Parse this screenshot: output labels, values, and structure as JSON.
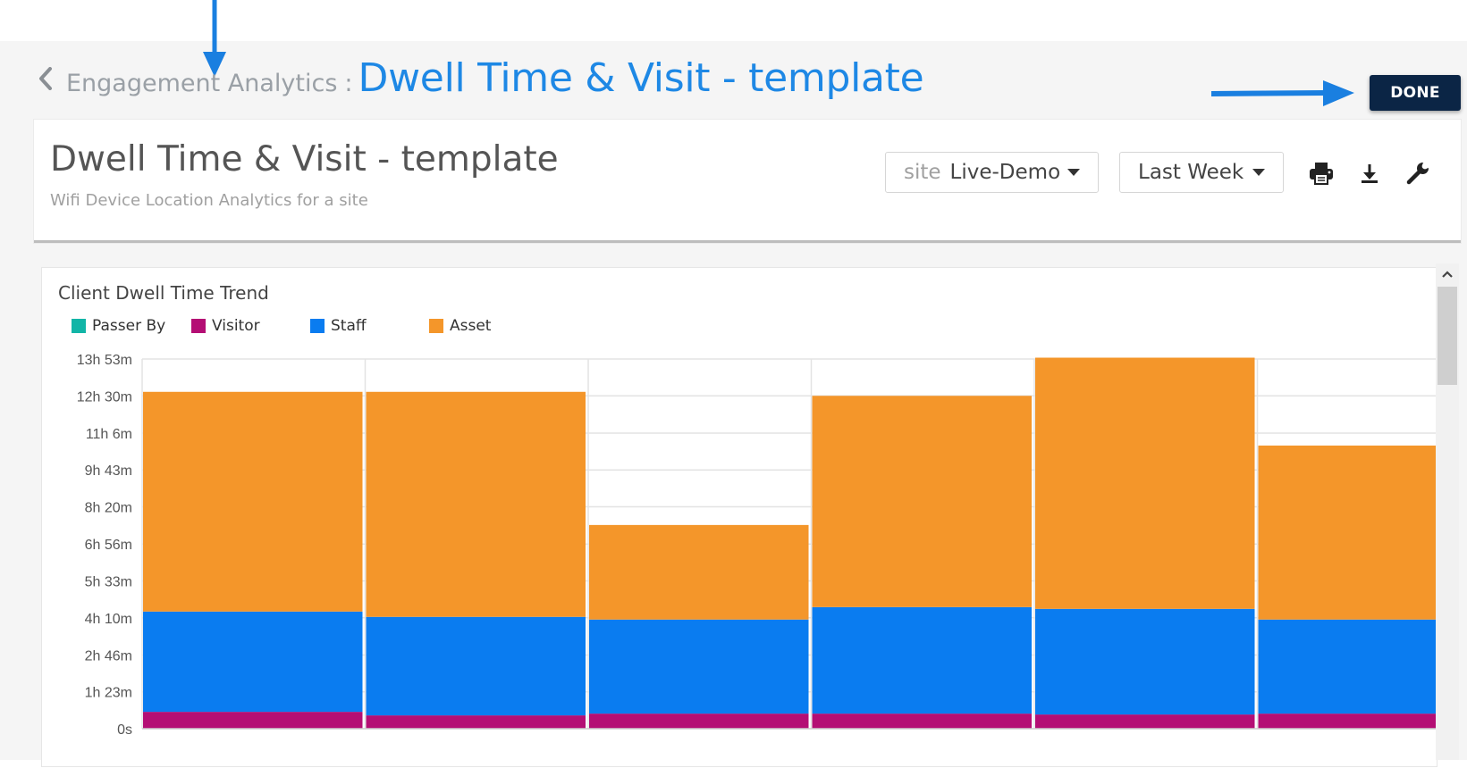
{
  "breadcrumb": {
    "parent": "Engagement Analytics",
    "separator": ":",
    "current": "Dwell Time & Visit - template"
  },
  "done_button": {
    "label": "DONE"
  },
  "dashboard": {
    "title": "Dwell Time & Visit - template",
    "subtitle": "Wifi Device Location Analytics for a site"
  },
  "filters": {
    "site": {
      "prefix": "site",
      "value": "Live-Demo"
    },
    "time_range": {
      "value": "Last Week"
    }
  },
  "toolbar_icons": [
    "print-icon",
    "download-icon",
    "wrench-icon"
  ],
  "colors": {
    "accent": "#1e88e5",
    "done_button": "#0b2545",
    "annotation_arrow": "#1a7fe0",
    "passer_by": "#12b5a7",
    "visitor": "#b40e74",
    "staff": "#0a7cf0",
    "asset": "#f4962a"
  },
  "widget": {
    "title": "Client Dwell Time Trend"
  },
  "chart_data": {
    "type": "bar",
    "stacked": true,
    "title": "Client Dwell Time Trend",
    "unit": "minutes",
    "y_axis_max_minutes": 833,
    "y_ticks": [
      {
        "label": "13h 53m",
        "minutes": 833
      },
      {
        "label": "12h 30m",
        "minutes": 750
      },
      {
        "label": "11h 6m",
        "minutes": 666
      },
      {
        "label": "9h 43m",
        "minutes": 583
      },
      {
        "label": "8h 20m",
        "minutes": 500
      },
      {
        "label": "6h 56m",
        "minutes": 416
      },
      {
        "label": "5h 33m",
        "minutes": 333
      },
      {
        "label": "4h 10m",
        "minutes": 250
      },
      {
        "label": "2h 46m",
        "minutes": 166
      },
      {
        "label": "1h 23m",
        "minutes": 83
      },
      {
        "label": "0s",
        "minutes": 0
      }
    ],
    "grid": true,
    "legend_position": "top-left",
    "bar_count": 6,
    "last_bar_cropped": true,
    "series": [
      {
        "name": "Passer By",
        "color": "#12b5a7",
        "values": [
          0,
          0,
          0,
          0,
          0,
          0
        ]
      },
      {
        "name": "Visitor",
        "color": "#b40e74",
        "values": [
          38,
          30,
          34,
          34,
          32,
          34
        ]
      },
      {
        "name": "Staff",
        "color": "#0a7cf0",
        "values": [
          226,
          222,
          212,
          240,
          238,
          212
        ]
      },
      {
        "name": "Asset",
        "color": "#f4962a",
        "values": [
          495,
          507,
          213,
          476,
          566,
          392
        ]
      }
    ]
  }
}
